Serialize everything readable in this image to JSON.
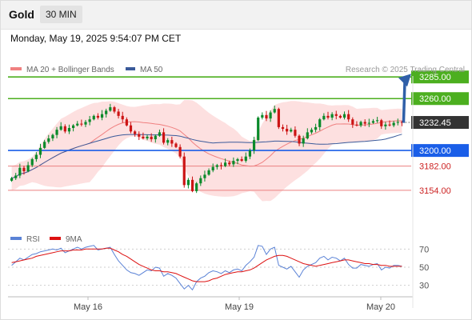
{
  "header": {
    "symbol": "Gold",
    "timeframe": "30 MIN"
  },
  "timestamp": "Monday, May 19, 2025 9:54:07 PM CET",
  "legend": {
    "bollinger_label": "MA 20 + Bollinger Bands",
    "ma50_label": "MA 50",
    "credit": "Research © 2025 Trading Central",
    "rsi_label": "RSI",
    "rsi_ma_label": "9MA"
  },
  "colors": {
    "candle_up": "#0a8a2a",
    "candle_down": "#cc1414",
    "ma20": "#f08080",
    "bollinger_fill": "#fde0e0",
    "ma50": "#3a5a9a",
    "resistance": "#4caf1f",
    "pivot": "#1a5ee8",
    "support": "#ec8080",
    "support_text": "#cc2222",
    "target_arrow": "#2f5fa8",
    "current_price_box": "#333333",
    "rsi_line": "#5a82d6",
    "rsi_ma_line": "#dd1111"
  },
  "chart_data": [
    {
      "type": "candlestick",
      "title": "Gold",
      "x_tick_labels": [
        "May 16",
        "May 19",
        "May 20"
      ],
      "ylim": [
        3115,
        3300
      ],
      "current_price": 3232.45,
      "levels": [
        {
          "label": "3285.00",
          "value": 3285,
          "kind": "resistance"
        },
        {
          "label": "3260.00",
          "value": 3260,
          "kind": "resistance"
        },
        {
          "label": "3232.45",
          "value": 3232.45,
          "kind": "current"
        },
        {
          "label": "3200.00",
          "value": 3200,
          "kind": "pivot"
        },
        {
          "label": "3182.00",
          "value": 3182,
          "kind": "support"
        },
        {
          "label": "3154.00",
          "value": 3154,
          "kind": "support"
        }
      ],
      "target_arrow": {
        "from": 3232,
        "to": 3285
      },
      "close": [
        3168,
        3171,
        3180,
        3176,
        3183,
        3190,
        3195,
        3203,
        3210,
        3214,
        3218,
        3224,
        3228,
        3222,
        3226,
        3229,
        3231,
        3230,
        3233,
        3236,
        3240,
        3238,
        3242,
        3246,
        3250,
        3245,
        3240,
        3236,
        3229,
        3222,
        3219,
        3216,
        3214,
        3216,
        3213,
        3217,
        3221,
        3209,
        3212,
        3208,
        3204,
        3193,
        3160,
        3166,
        3153,
        3162,
        3168,
        3172,
        3177,
        3181,
        3183,
        3182,
        3186,
        3184,
        3188,
        3190,
        3188,
        3193,
        3200,
        3212,
        3238,
        3241,
        3237,
        3244,
        3248,
        3227,
        3225,
        3222,
        3224,
        3217,
        3208,
        3214,
        3221,
        3224,
        3227,
        3236,
        3240,
        3238,
        3242,
        3240,
        3238,
        3242,
        3236,
        3230,
        3229,
        3233,
        3231,
        3232,
        3234,
        3235,
        3228,
        3230,
        3229,
        3232,
        3233,
        3232
      ]
    },
    {
      "type": "line",
      "title": "RSI",
      "ylim": [
        20,
        80
      ],
      "y_ticks": [
        30,
        50,
        70
      ],
      "series": [
        {
          "name": "RSI",
          "values": [
            52,
            56,
            60,
            58,
            61,
            64,
            65,
            67,
            68,
            69,
            70,
            69,
            71,
            66,
            68,
            70,
            72,
            70,
            72,
            73,
            74,
            69,
            70,
            71,
            72,
            64,
            57,
            52,
            47,
            44,
            43,
            41,
            44,
            47,
            46,
            50,
            49,
            40,
            43,
            41,
            38,
            32,
            26,
            30,
            25,
            34,
            38,
            40,
            44,
            46,
            45,
            43,
            46,
            44,
            47,
            48,
            46,
            52,
            56,
            61,
            74,
            73,
            64,
            70,
            72,
            52,
            50,
            48,
            51,
            45,
            39,
            47,
            51,
            53,
            55,
            60,
            62,
            58,
            61,
            60,
            57,
            60,
            53,
            49,
            49,
            53,
            52,
            51,
            53,
            54,
            47,
            50,
            49,
            52,
            52,
            51
          ]
        },
        {
          "name": "9MA",
          "values": [
            55,
            56,
            57,
            58,
            59,
            60,
            62,
            63,
            64,
            65,
            66,
            67,
            68,
            68,
            68,
            69,
            69,
            69,
            70,
            70,
            70,
            70,
            70,
            71,
            71,
            69,
            67,
            64,
            62,
            59,
            56,
            53,
            51,
            49,
            47,
            46,
            46,
            45,
            45,
            44,
            43,
            41,
            39,
            37,
            35,
            34,
            34,
            34,
            35,
            37,
            38,
            40,
            42,
            43,
            44,
            45,
            45,
            46,
            47,
            49,
            52,
            55,
            58,
            60,
            62,
            63,
            63,
            62,
            60,
            58,
            56,
            54,
            53,
            52,
            51,
            52,
            53,
            54,
            55,
            56,
            57,
            58,
            58,
            57,
            56,
            55,
            54,
            54,
            53,
            53,
            52,
            52,
            51,
            51,
            51,
            51
          ]
        }
      ]
    }
  ]
}
